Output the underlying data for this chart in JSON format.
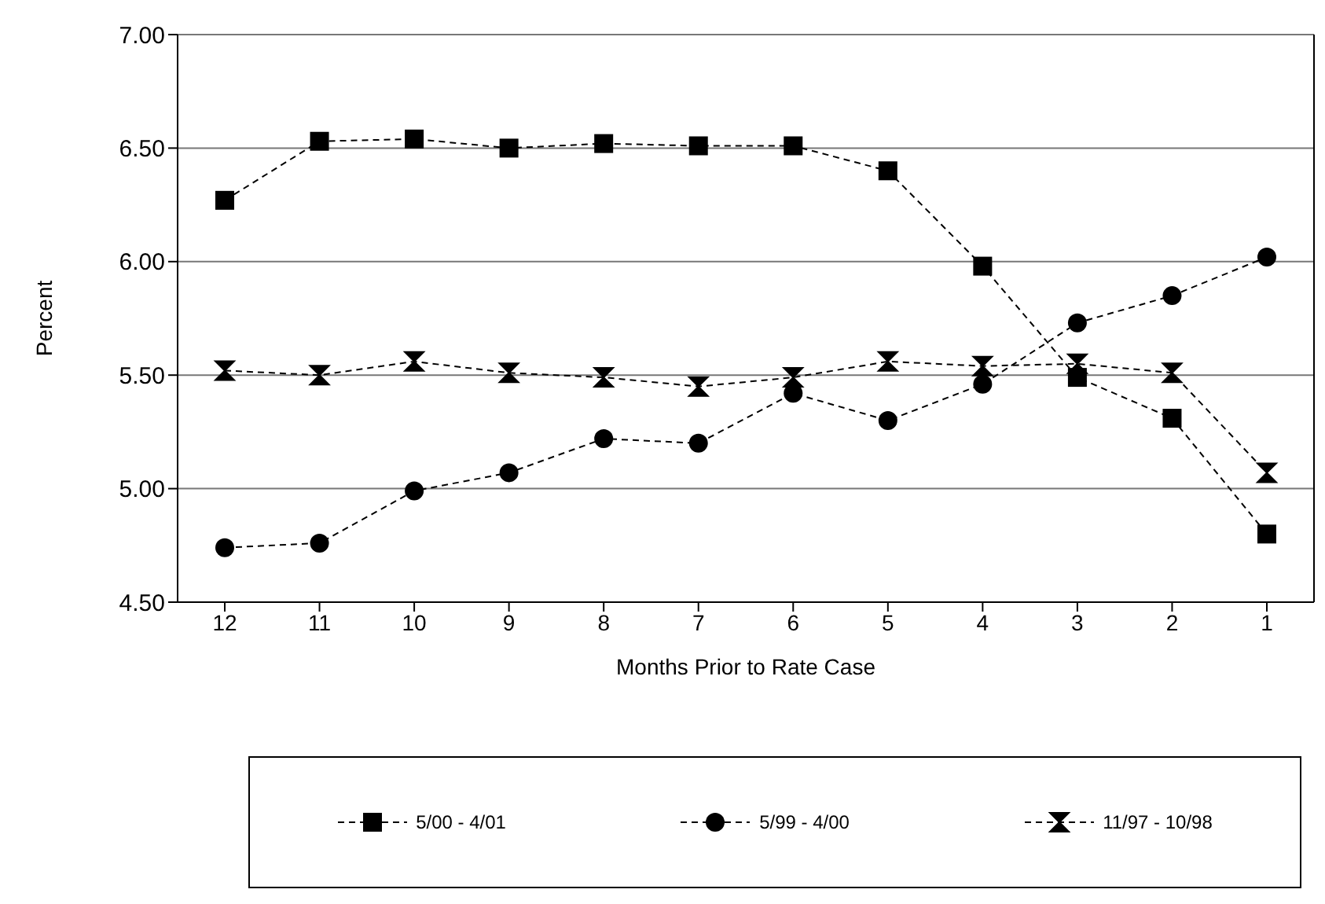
{
  "chart_data": {
    "type": "line",
    "xlabel": "Months Prior to Rate Case",
    "ylabel": "Percent",
    "categories": [
      "12",
      "11",
      "10",
      "9",
      "8",
      "7",
      "6",
      "5",
      "4",
      "3",
      "2",
      "1"
    ],
    "ylim": [
      4.5,
      7.0
    ],
    "yticks": [
      {
        "value": 4.5,
        "label": "4.50"
      },
      {
        "value": 5.0,
        "label": "5.00"
      },
      {
        "value": 5.5,
        "label": "5.50"
      },
      {
        "value": 6.0,
        "label": "6.00"
      },
      {
        "value": 6.5,
        "label": "6.50"
      },
      {
        "value": 7.0,
        "label": "7.00"
      }
    ],
    "grid": "y",
    "legend": "bottom",
    "line_style": "dashed",
    "series": [
      {
        "name": "5/00 - 4/01",
        "color": "#000000",
        "marker": "square",
        "values": [
          6.27,
          6.53,
          6.54,
          6.5,
          6.52,
          6.51,
          6.51,
          6.4,
          5.98,
          5.49,
          5.31,
          4.8
        ]
      },
      {
        "name": "5/99 - 4/00",
        "color": "#000000",
        "marker": "circle",
        "values": [
          4.74,
          4.76,
          4.99,
          5.07,
          5.22,
          5.2,
          5.42,
          5.3,
          5.46,
          5.73,
          5.85,
          6.02
        ]
      },
      {
        "name": "11/97 - 10/98",
        "color": "#000000",
        "marker": "triangle",
        "values": [
          5.52,
          5.5,
          5.56,
          5.51,
          5.49,
          5.45,
          5.49,
          5.56,
          5.54,
          5.55,
          5.51,
          5.07
        ]
      }
    ]
  }
}
